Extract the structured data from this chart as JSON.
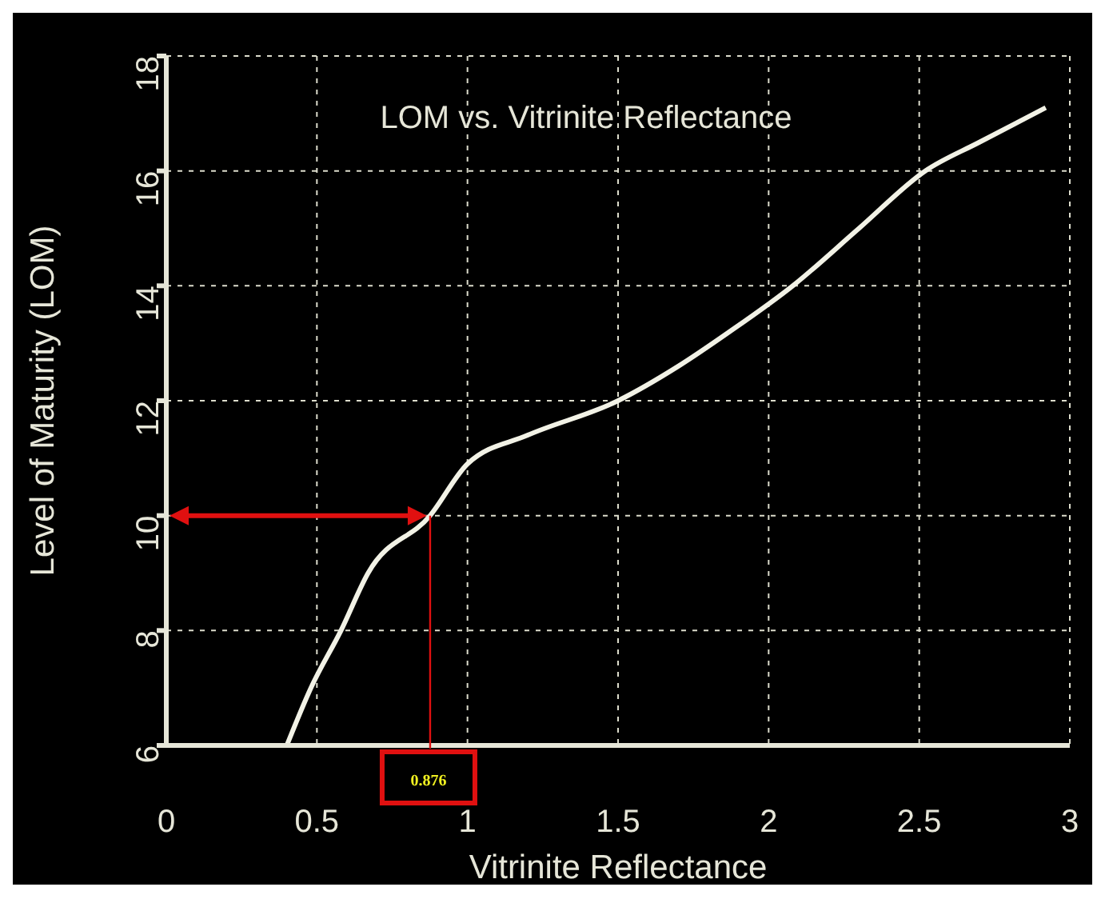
{
  "chart_data": {
    "type": "line",
    "title": "LOM vs. Vitrinite Reflectance",
    "xlabel": "Vitrinite Reflectance",
    "ylabel": "Level of Maturity (LOM)",
    "x": [
      0.4,
      0.48,
      0.58,
      0.67,
      0.876,
      1.0,
      1.2,
      1.5,
      1.7,
      1.87,
      2.08,
      2.3,
      2.52,
      2.7,
      2.92
    ],
    "series": [
      {
        "color": "#f2f2e6",
        "values": [
          6,
          7,
          8,
          9,
          10,
          10.9,
          11.4,
          12,
          12.6,
          13.2,
          14,
          15,
          16,
          16.5,
          17.1
        ]
      }
    ],
    "xlim": [
      0,
      3
    ],
    "xticks": [
      0,
      0.5,
      1,
      1.5,
      2,
      2.5,
      3
    ],
    "ylim": [
      6,
      18
    ],
    "yticks": [
      6,
      8,
      10,
      12,
      14,
      16,
      18
    ],
    "grid": true,
    "marker": "none",
    "line_style": "solid",
    "legend": false,
    "ref_lines": [
      {
        "axis": "y",
        "value": 10,
        "color": "#e01010"
      },
      {
        "axis": "x",
        "value": 0.876,
        "label": "0.876",
        "color": "#e01010"
      }
    ]
  }
}
